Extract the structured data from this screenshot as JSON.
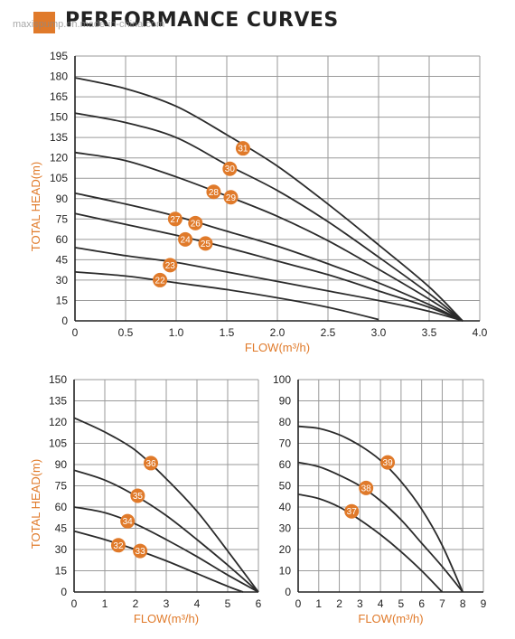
{
  "header": {
    "title": "PERFORMANCE CURVES",
    "watermark": "maxispump.en.made-in-china.com",
    "accent_color": "#e07a2a"
  },
  "styles": {
    "accent": "#e07a2a",
    "curve": "#2b2b2b",
    "grid": "#9a9a9a"
  },
  "chart_data": [
    {
      "type": "line",
      "xlabel": "FLOW(m³/h)",
      "ylabel": "TOTAL HEAD(m)",
      "xlim": [
        0,
        4.0
      ],
      "ylim": [
        0,
        195
      ],
      "xticks": [
        0,
        0.5,
        1.0,
        1.5,
        2.0,
        2.5,
        3.0,
        3.5,
        4.0
      ],
      "xtick_labels": [
        "0",
        "0.5",
        "1.0",
        "1.5",
        "2.0",
        "2.5",
        "3.0",
        "3.5",
        "4.0"
      ],
      "yticks": [
        0,
        15,
        30,
        45,
        60,
        75,
        90,
        105,
        120,
        135,
        150,
        165,
        180,
        195
      ],
      "ytick_labels": [
        "0",
        "15",
        "30",
        "45",
        "60",
        "75",
        "90",
        "105",
        "120",
        "135",
        "150",
        "165",
        "180",
        "195"
      ],
      "grid": true,
      "series": [
        {
          "name": "31",
          "label_at": [
            1.66,
            127
          ],
          "points": [
            [
              0,
              179
            ],
            [
              0.5,
              171
            ],
            [
              1.0,
              158
            ],
            [
              1.5,
              137
            ],
            [
              2.0,
              114
            ],
            [
              2.5,
              86
            ],
            [
              3.0,
              56
            ],
            [
              3.5,
              25
            ],
            [
              3.83,
              0
            ]
          ]
        },
        {
          "name": "30",
          "label_at": [
            1.53,
            112
          ],
          "points": [
            [
              0,
              153
            ],
            [
              0.5,
              146
            ],
            [
              1.0,
              135
            ],
            [
              1.5,
              115
            ],
            [
              2.0,
              96
            ],
            [
              2.5,
              73
            ],
            [
              3.0,
              47
            ],
            [
              3.5,
              20
            ],
            [
              3.83,
              0
            ]
          ]
        },
        {
          "name": "28",
          "label_at": [
            1.37,
            95
          ],
          "points": [
            [
              0,
              124
            ],
            [
              0.5,
              118
            ],
            [
              1.0,
              106
            ],
            [
              1.5,
              92
            ],
            [
              2.0,
              77
            ],
            [
              2.5,
              59
            ],
            [
              3.0,
              38
            ],
            [
              3.5,
              16
            ],
            [
              3.83,
              0
            ]
          ]
        },
        {
          "name": "29",
          "label_at": [
            1.54,
            91
          ],
          "points": []
        },
        {
          "name": "27",
          "label_at": [
            0.99,
            75
          ],
          "points": [
            [
              0,
              94
            ],
            [
              0.5,
              86
            ],
            [
              1.0,
              77
            ],
            [
              1.5,
              66
            ],
            [
              2.0,
              55
            ],
            [
              2.5,
              42
            ],
            [
              3.0,
              28
            ],
            [
              3.5,
              12
            ],
            [
              3.83,
              0
            ]
          ]
        },
        {
          "name": "26",
          "label_at": [
            1.19,
            72
          ],
          "points": []
        },
        {
          "name": "24",
          "label_at": [
            1.09,
            60
          ],
          "points": [
            [
              0,
              79
            ],
            [
              0.5,
              71
            ],
            [
              1.0,
              63
            ],
            [
              1.5,
              54
            ],
            [
              2.0,
              44
            ],
            [
              2.5,
              34
            ],
            [
              3.0,
              22
            ],
            [
              3.5,
              10
            ],
            [
              3.83,
              0
            ]
          ]
        },
        {
          "name": "25",
          "label_at": [
            1.29,
            57
          ],
          "points": []
        },
        {
          "name": "23",
          "label_at": [
            0.94,
            41
          ],
          "points": [
            [
              0,
              54
            ],
            [
              0.5,
              48
            ],
            [
              1.0,
              43
            ],
            [
              1.5,
              36
            ],
            [
              2.0,
              29
            ],
            [
              2.5,
              22
            ],
            [
              3.0,
              15
            ],
            [
              3.5,
              7
            ],
            [
              3.83,
              0
            ]
          ]
        },
        {
          "name": "22",
          "label_at": [
            0.84,
            30
          ],
          "points": [
            [
              0,
              36
            ],
            [
              0.5,
              33
            ],
            [
              1.0,
              28
            ],
            [
              1.5,
              23
            ],
            [
              2.0,
              17
            ],
            [
              2.5,
              10
            ],
            [
              3.0,
              1
            ]
          ]
        }
      ]
    },
    {
      "type": "line",
      "xlabel": "FLOW(m³/h)",
      "ylabel": "TOTAL HEAD(m)",
      "xlim": [
        0,
        6
      ],
      "ylim": [
        0,
        150
      ],
      "xticks": [
        0,
        1,
        2,
        3,
        4,
        5,
        6
      ],
      "xtick_labels": [
        "0",
        "1",
        "2",
        "3",
        "4",
        "5",
        "6"
      ],
      "yticks": [
        0,
        15,
        30,
        45,
        60,
        75,
        90,
        105,
        120,
        135,
        150
      ],
      "ytick_labels": [
        "0",
        "15",
        "30",
        "45",
        "60",
        "75",
        "90",
        "105",
        "120",
        "135",
        "150"
      ],
      "grid": true,
      "series": [
        {
          "name": "36",
          "label_at": [
            2.5,
            91
          ],
          "points": [
            [
              0,
              123
            ],
            [
              1,
              113
            ],
            [
              2,
              100
            ],
            [
              3,
              80
            ],
            [
              4,
              57
            ],
            [
              5,
              29
            ],
            [
              6,
              0
            ]
          ]
        },
        {
          "name": "35",
          "label_at": [
            2.07,
            68
          ],
          "points": [
            [
              0,
              86
            ],
            [
              1,
              79
            ],
            [
              2,
              68
            ],
            [
              3,
              54
            ],
            [
              4,
              37
            ],
            [
              5,
              19
            ],
            [
              6,
              0
            ]
          ]
        },
        {
          "name": "34",
          "label_at": [
            1.74,
            50
          ],
          "points": [
            [
              0,
              60
            ],
            [
              1,
              56
            ],
            [
              2,
              48
            ],
            [
              3,
              37
            ],
            [
              4,
              25
            ],
            [
              5,
              12
            ],
            [
              6,
              0
            ]
          ]
        },
        {
          "name": "32",
          "label_at": [
            1.44,
            33
          ],
          "points": [
            [
              0,
              43
            ],
            [
              1,
              37
            ],
            [
              2,
              30
            ],
            [
              3,
              22
            ],
            [
              4,
              13
            ],
            [
              5,
              4
            ],
            [
              5.5,
              0
            ]
          ]
        },
        {
          "name": "33",
          "label_at": [
            2.15,
            29
          ],
          "points": []
        }
      ]
    },
    {
      "type": "line",
      "xlabel": "FLOW(m³/h)",
      "ylabel": "",
      "xlim": [
        0,
        9
      ],
      "ylim": [
        0,
        100
      ],
      "xticks": [
        0,
        1,
        2,
        3,
        4,
        5,
        6,
        7,
        8,
        9
      ],
      "xtick_labels": [
        "0",
        "1",
        "2",
        "3",
        "4",
        "5",
        "6",
        "7",
        "8",
        "9"
      ],
      "yticks": [
        0,
        10,
        20,
        30,
        40,
        50,
        60,
        70,
        80,
        90,
        100
      ],
      "ytick_labels": [
        "0",
        "10",
        "20",
        "30",
        "40",
        "50",
        "60",
        "70",
        "80",
        "90",
        "100"
      ],
      "grid": true,
      "series": [
        {
          "name": "39",
          "label_at": [
            4.35,
            61
          ],
          "points": [
            [
              0,
              78
            ],
            [
              1,
              77
            ],
            [
              2,
              74
            ],
            [
              3,
              69
            ],
            [
              4,
              62
            ],
            [
              5,
              52
            ],
            [
              6,
              39
            ],
            [
              7,
              22
            ],
            [
              8,
              0
            ]
          ]
        },
        {
          "name": "38",
          "label_at": [
            3.3,
            49
          ],
          "points": [
            [
              0,
              61
            ],
            [
              1,
              59
            ],
            [
              2,
              55
            ],
            [
              3,
              50
            ],
            [
              4,
              43
            ],
            [
              5,
              34
            ],
            [
              6,
              23
            ],
            [
              7,
              12
            ],
            [
              8,
              0
            ]
          ]
        },
        {
          "name": "37",
          "label_at": [
            2.6,
            38
          ],
          "points": [
            [
              0,
              46
            ],
            [
              1,
              44
            ],
            [
              2,
              40
            ],
            [
              3,
              34
            ],
            [
              4,
              27
            ],
            [
              5,
              19
            ],
            [
              6,
              10
            ],
            [
              7,
              0
            ]
          ]
        }
      ]
    }
  ]
}
